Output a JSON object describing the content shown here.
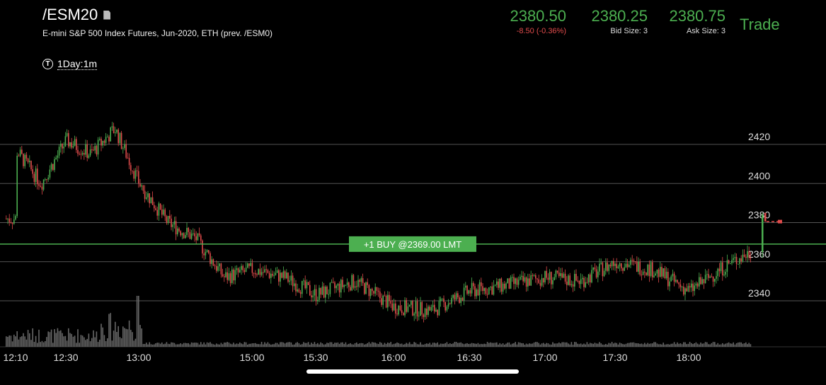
{
  "symbol": "/ESM20",
  "description": "E-mini S&P 500 Index Futures, Jun-2020, ETH (prev. /ESM0)",
  "quote": {
    "last": "2380.50",
    "change": "-8.50 (-0.36%)",
    "bid": "2380.25",
    "bid_size": "Bid Size: 3",
    "ask": "2380.75",
    "ask_size": "Ask Size: 3"
  },
  "trade_label": "Trade",
  "timeframe": {
    "icon_letter": "T",
    "label": "1Day:1m"
  },
  "order_label": "+1 BUY @2369.00 LMT",
  "colors": {
    "up": "#4caf50",
    "down": "#e04b4b",
    "grid": "#555555",
    "order_line": "#4caf50"
  },
  "icons": [
    "document-icon",
    "timeframe-icon"
  ],
  "chart_data": {
    "type": "candlestick",
    "ylim": [
      2330,
      2435
    ],
    "y_ticks": [
      2420,
      2400,
      2380,
      2360,
      2340
    ],
    "x_ticks": [
      "12:10",
      "12:30",
      "13:00",
      "15:00",
      "15:30",
      "16:00",
      "16:30",
      "17:00",
      "17:30",
      "18:00"
    ],
    "order_level": 2369,
    "current_price": 2380.5,
    "close_path": [
      [
        "12:10",
        2417
      ],
      [
        "12:20",
        2400
      ],
      [
        "12:30",
        2422
      ],
      [
        "12:40",
        2415
      ],
      [
        "12:50",
        2428
      ],
      [
        "13:00",
        2400
      ],
      [
        "13:30",
        2380
      ],
      [
        "14:00",
        2372
      ],
      [
        "14:30",
        2352
      ],
      [
        "15:00",
        2356
      ],
      [
        "15:15",
        2352
      ],
      [
        "15:30",
        2343
      ],
      [
        "15:45",
        2350
      ],
      [
        "16:00",
        2337
      ],
      [
        "16:15",
        2335
      ],
      [
        "16:30",
        2345
      ],
      [
        "16:45",
        2348
      ],
      [
        "17:00",
        2352
      ],
      [
        "17:15",
        2350
      ],
      [
        "17:30",
        2360
      ],
      [
        "17:45",
        2356
      ],
      [
        "18:00",
        2345
      ],
      [
        "18:15",
        2358
      ],
      [
        "18:25",
        2365
      ],
      [
        "18:30",
        2382
      ]
    ]
  }
}
